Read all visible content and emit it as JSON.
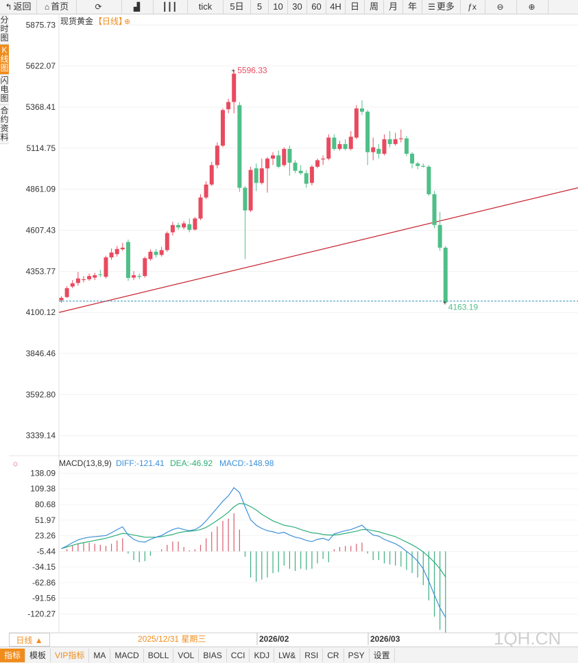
{
  "toolbar": {
    "items": [
      {
        "label": "返回",
        "icon": "back-arrow-icon",
        "glyph": "↰"
      },
      {
        "label": "首页",
        "icon": "home-icon",
        "glyph": "⌂"
      },
      {
        "label": "",
        "icon": "refresh-icon",
        "glyph": "⟳"
      },
      {
        "label": "",
        "icon": "bar-chart-icon",
        "glyph": "▟"
      },
      {
        "label": "",
        "icon": "candlestick-icon",
        "glyph": "┃┃┃"
      },
      {
        "label": "tick",
        "icon": "",
        "glyph": ""
      },
      {
        "label": "5日",
        "icon": "",
        "glyph": ""
      },
      {
        "label": "5",
        "icon": "",
        "glyph": ""
      },
      {
        "label": "10",
        "icon": "",
        "glyph": ""
      },
      {
        "label": "30",
        "icon": "",
        "glyph": ""
      },
      {
        "label": "60",
        "icon": "",
        "glyph": ""
      },
      {
        "label": "4H",
        "icon": "",
        "glyph": ""
      },
      {
        "label": "日",
        "icon": "",
        "glyph": ""
      },
      {
        "label": "周",
        "icon": "",
        "glyph": ""
      },
      {
        "label": "月",
        "icon": "",
        "glyph": ""
      },
      {
        "label": "年",
        "icon": "",
        "glyph": ""
      },
      {
        "label": "更多",
        "icon": "menu-icon",
        "glyph": "☰"
      },
      {
        "label": "",
        "icon": "formula-icon",
        "glyph": "ƒx"
      },
      {
        "label": "",
        "icon": "zoom-out-icon",
        "glyph": "⊖"
      },
      {
        "label": "",
        "icon": "zoom-in-icon",
        "glyph": "⊕"
      }
    ]
  },
  "sidetabs": [
    {
      "label": "分时图",
      "active": false
    },
    {
      "label": "K线图",
      "active": true
    },
    {
      "label": "闪电图",
      "active": false
    },
    {
      "label": "合约资料",
      "active": false
    }
  ],
  "chart_data": [
    {
      "type": "candlestick",
      "title": "现货黄金",
      "period_label": "【日线】",
      "y_ticks": [
        5875.73,
        5622.07,
        5368.41,
        5114.75,
        4861.09,
        4607.43,
        4353.77,
        4100.12,
        3846.46,
        3592.8,
        3339.14
      ],
      "y_tick_labels": [
        "5875.73",
        "5622.07",
        "5368.41",
        "5114.75",
        "4861.09",
        "4607.43",
        "4353.77",
        "4100.12",
        "3846.46",
        "3592.80",
        "3339.14"
      ],
      "ylim": [
        3215,
        5945
      ],
      "high_label": "5596.33",
      "low_label": "4163.19",
      "high_value": 5596.33,
      "low_value": 4163.19,
      "current_price_line": 4170,
      "trendline": {
        "start_value": 4100,
        "end_value": 4870
      },
      "up_color": "#e84a5f",
      "down_color": "#4fbf87",
      "candles": [
        [
          4175,
          4190,
          4160,
          4200
        ],
        [
          4195,
          4250,
          4190,
          4262
        ],
        [
          4260,
          4280,
          4250,
          4300
        ],
        [
          4282,
          4310,
          4265,
          4350
        ],
        [
          4300,
          4305,
          4285,
          4325
        ],
        [
          4305,
          4325,
          4295,
          4340
        ],
        [
          4315,
          4330,
          4300,
          4345
        ],
        [
          4335,
          4332,
          4318,
          4362
        ],
        [
          4320,
          4440,
          4310,
          4450
        ],
        [
          4440,
          4470,
          4425,
          4495
        ],
        [
          4460,
          4492,
          4445,
          4510
        ],
        [
          4490,
          4500,
          4480,
          4530
        ],
        [
          4535,
          4313,
          4295,
          4550
        ],
        [
          4315,
          4330,
          4300,
          4355
        ],
        [
          4325,
          4320,
          4305,
          4340
        ],
        [
          4325,
          4435,
          4315,
          4445
        ],
        [
          4430,
          4475,
          4420,
          4490
        ],
        [
          4475,
          4455,
          4440,
          4492
        ],
        [
          4455,
          4485,
          4445,
          4505
        ],
        [
          4485,
          4590,
          4475,
          4600
        ],
        [
          4595,
          4640,
          4575,
          4660
        ],
        [
          4640,
          4625,
          4610,
          4655
        ],
        [
          4625,
          4650,
          4612,
          4665
        ],
        [
          4645,
          4610,
          4595,
          4680
        ],
        [
          4612,
          4680,
          4605,
          4690
        ],
        [
          4680,
          4810,
          4670,
          4830
        ],
        [
          4810,
          4890,
          4800,
          4910
        ],
        [
          4890,
          5010,
          4880,
          5030
        ],
        [
          5010,
          5130,
          4990,
          5150
        ],
        [
          5130,
          5350,
          5120,
          5360
        ],
        [
          5355,
          5400,
          5330,
          5420
        ],
        [
          5400,
          5575,
          5330,
          5596
        ],
        [
          5380,
          4870,
          4845,
          5400
        ],
        [
          4870,
          4730,
          4430,
          4880
        ],
        [
          4730,
          4980,
          4720,
          5000
        ],
        [
          4990,
          4900,
          4850,
          5020
        ],
        [
          4900,
          4990,
          4890,
          5050
        ],
        [
          4990,
          5050,
          4840,
          5060
        ],
        [
          5050,
          5070,
          5010,
          5090
        ],
        [
          5070,
          5000,
          4990,
          5100
        ],
        [
          5010,
          5110,
          5000,
          5120
        ],
        [
          5110,
          5025,
          4945,
          5130
        ],
        [
          5025,
          4975,
          4960,
          5040
        ],
        [
          4975,
          4960,
          4950,
          5010
        ],
        [
          4960,
          4895,
          4870,
          4980
        ],
        [
          4900,
          5000,
          4885,
          5010
        ],
        [
          5000,
          5040,
          4990,
          5050
        ],
        [
          5045,
          5050,
          5010,
          5070
        ],
        [
          5050,
          5180,
          5040,
          5200
        ],
        [
          5180,
          5110,
          5100,
          5200
        ],
        [
          5110,
          5140,
          5100,
          5160
        ],
        [
          5140,
          5110,
          5100,
          5170
        ],
        [
          5110,
          5185,
          5100,
          5220
        ],
        [
          5180,
          5360,
          5170,
          5380
        ],
        [
          5360,
          5340,
          5320,
          5410
        ],
        [
          5340,
          5090,
          5010,
          5350
        ],
        [
          5090,
          5120,
          5040,
          5180
        ],
        [
          5110,
          5080,
          5050,
          5140
        ],
        [
          5080,
          5170,
          5070,
          5200
        ],
        [
          5170,
          5140,
          5120,
          5220
        ],
        [
          5140,
          5170,
          5130,
          5210
        ],
        [
          5170,
          5175,
          5150,
          5230
        ],
        [
          5175,
          5080,
          5065,
          5190
        ],
        [
          5080,
          5020,
          4990,
          5090
        ],
        [
          5020,
          5005,
          4985,
          5030
        ],
        [
          5005,
          5000,
          4995,
          5020
        ],
        [
          5000,
          4830,
          4820,
          5010
        ],
        [
          4830,
          4640,
          4620,
          4850
        ],
        [
          4640,
          4500,
          4480,
          4720
        ],
        [
          4500,
          4163,
          4150,
          4510
        ]
      ]
    },
    {
      "type": "bar-line",
      "title": "MACD(13,8,9)",
      "diff_label": "DIFF:-121.41",
      "dea_label": "DEA:-46.92",
      "macd_label": "MACD:-148.98",
      "y_ticks": [
        138.09,
        109.38,
        80.68,
        51.97,
        23.26,
        -5.44,
        -34.15,
        -62.86,
        -91.56,
        -120.27
      ],
      "y_tick_labels": [
        "138.09",
        "109.38",
        "80.68",
        "51.97",
        "23.26",
        "-5.44",
        "-34.15",
        "-62.86",
        "-91.56",
        "-120.27"
      ],
      "ylim": [
        -155,
        150
      ],
      "zero_value": -5.44,
      "diff_color": "#3b8fd8",
      "dea_color": "#2aae77",
      "pos_color": "#d85a6a",
      "neg_color": "#3aae80",
      "diff": [
        5,
        10,
        16,
        21,
        24,
        26,
        27,
        28,
        29,
        34,
        40,
        45,
        30,
        22,
        18,
        17,
        22,
        26,
        29,
        35,
        40,
        43,
        40,
        38,
        40,
        46,
        56,
        68,
        80,
        92,
        102,
        117,
        108,
        82,
        58,
        48,
        42,
        38,
        36,
        33,
        35,
        30,
        26,
        24,
        20,
        18,
        22,
        24,
        20,
        32,
        35,
        38,
        40,
        44,
        48,
        38,
        30,
        28,
        22,
        18,
        14,
        8,
        0,
        -8,
        -18,
        -32,
        -55,
        -80,
        -104,
        -121
      ],
      "dea": [
        5,
        8,
        11,
        14,
        16,
        18,
        20,
        22,
        24,
        27,
        30,
        33,
        32,
        30,
        28,
        26,
        26,
        26,
        27,
        29,
        31,
        34,
        36,
        37,
        38,
        40,
        44,
        50,
        57,
        64,
        72,
        82,
        88,
        87,
        82,
        76,
        68,
        62,
        56,
        52,
        48,
        46,
        44,
        40,
        37,
        34,
        33,
        31,
        30,
        30,
        31,
        33,
        35,
        37,
        40,
        40,
        38,
        36,
        33,
        30,
        27,
        22,
        17,
        12,
        6,
        -1,
        -10,
        -20,
        -32,
        -47
      ],
      "macd": [
        0,
        4,
        10,
        14,
        16,
        16,
        14,
        12,
        10,
        14,
        20,
        24,
        -4,
        -16,
        -20,
        -18,
        -8,
        0,
        4,
        12,
        18,
        18,
        8,
        2,
        4,
        12,
        24,
        36,
        46,
        56,
        60,
        70,
        40,
        -10,
        -48,
        -56,
        -52,
        -48,
        -40,
        -38,
        -26,
        -32,
        -36,
        -32,
        -34,
        -32,
        -22,
        -14,
        -20,
        4,
        8,
        10,
        10,
        14,
        16,
        -4,
        -16,
        -16,
        -22,
        -24,
        -26,
        -28,
        -34,
        -40,
        -48,
        -62,
        -90,
        -120,
        -144,
        -149
      ]
    }
  ],
  "x_axis": {
    "period_button": "日线 ▲",
    "date_labels": [
      {
        "text": "2025/12/31 星期三",
        "highlight": true
      },
      {
        "text": "2026/02",
        "highlight": false
      },
      {
        "text": "2026/03",
        "highlight": false
      }
    ]
  },
  "watermark": "1QH.CN",
  "bottom_tabs": [
    {
      "label": "指标",
      "active": true
    },
    {
      "label": "模板",
      "active": false
    },
    {
      "label": "VIP指标",
      "active": false,
      "vip": true
    },
    {
      "label": "MA",
      "active": false
    },
    {
      "label": "MACD",
      "active": false
    },
    {
      "label": "BOLL",
      "active": false
    },
    {
      "label": "VOL",
      "active": false
    },
    {
      "label": "BIAS",
      "active": false
    },
    {
      "label": "CCI",
      "active": false
    },
    {
      "label": "KDJ",
      "active": false
    },
    {
      "label": "LW&",
      "active": false
    },
    {
      "label": "RSI",
      "active": false
    },
    {
      "label": "CR",
      "active": false
    },
    {
      "label": "PSY",
      "active": false
    },
    {
      "label": "设置",
      "active": false
    }
  ]
}
